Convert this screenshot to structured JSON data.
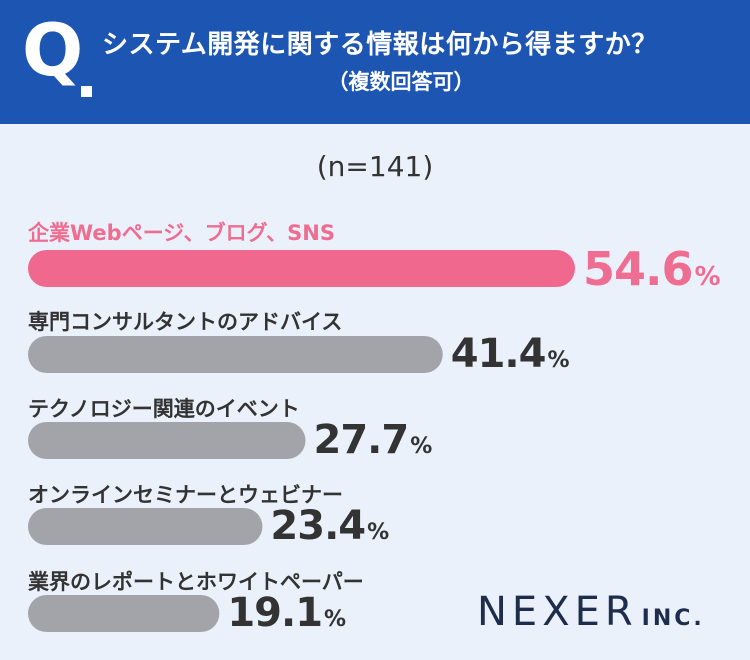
{
  "header": {
    "q_mark": "Q",
    "title": "システム開発に関する情報は何から得ますか？",
    "subtitle": "（複数回答可）"
  },
  "sample_size": "(n=141)",
  "chart_data": {
    "type": "bar",
    "orientation": "horizontal",
    "categories": [
      "企業Webページ、ブログ、SNS",
      "専門コンサルタントのアドバイス",
      "テクノロジー関連のイベント",
      "オンラインセミナーとウェビナー",
      "業界のレポートとホワイトペーパー"
    ],
    "values": [
      54.6,
      41.4,
      27.7,
      23.4,
      19.1
    ],
    "value_labels": [
      "54.6",
      "41.4",
      "27.7",
      "23.4",
      "19.1"
    ],
    "unit": "%",
    "colors": {
      "highlight": "#f0688e",
      "default": "#a2a4aa"
    },
    "highlight_index": 0,
    "grid": false,
    "legend": "none"
  },
  "logo": {
    "brand": "NEXER",
    "suffix": "INC."
  },
  "colors": {
    "header_bg": "#1d55b3",
    "page_bg": "#eaf1fa",
    "text": "#333333",
    "logo": "#1f2d4d"
  }
}
